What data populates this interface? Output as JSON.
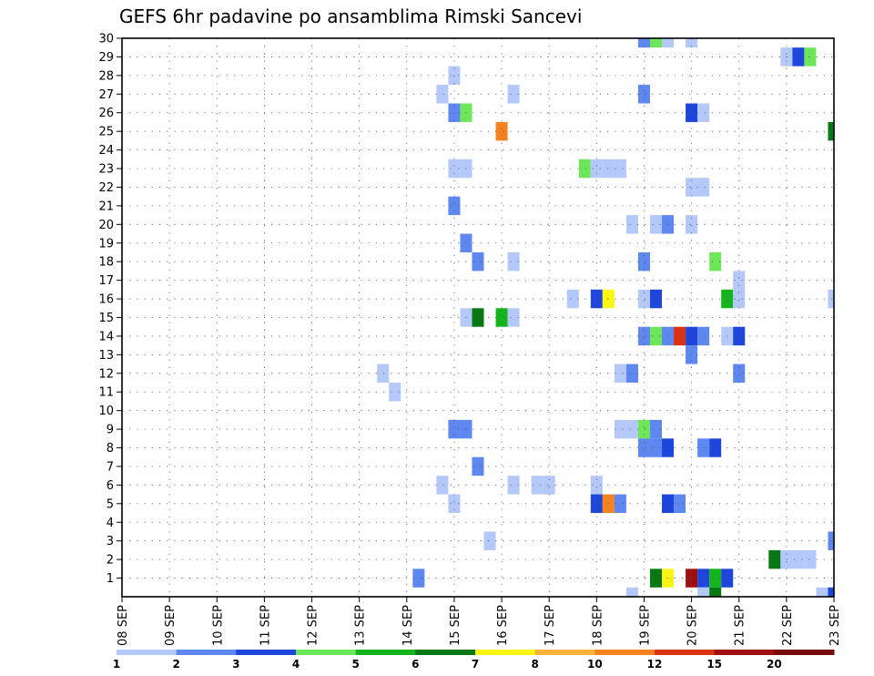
{
  "chart_data": {
    "type": "heatmap",
    "title": "GEFS 6hr padavine po ansamblima Rimski Sancevi",
    "x_ticks": [
      "08 SEP",
      "09 SEP",
      "10 SEP",
      "11 SEP",
      "12 SEP",
      "13 SEP",
      "14 SEP",
      "15 SEP",
      "16 SEP",
      "17 SEP",
      "18 SEP",
      "19 SEP",
      "20 SEP",
      "21 SEP",
      "22 SEP",
      "23 SEP"
    ],
    "x_range": [
      "08 SEP 00Z",
      "23 SEP 00Z"
    ],
    "y_ticks": [
      "1",
      "2",
      "3",
      "4",
      "5",
      "6",
      "7",
      "8",
      "9",
      "10",
      "11",
      "12",
      "13",
      "14",
      "15",
      "16",
      "17",
      "18",
      "19",
      "20",
      "21",
      "22",
      "23",
      "24",
      "25",
      "26",
      "27",
      "28",
      "29",
      "30"
    ],
    "y_range": [
      0,
      30
    ],
    "grid": true,
    "legend_levels": [
      "1",
      "2",
      "3",
      "4",
      "5",
      "6",
      "7",
      "8",
      "10",
      "12",
      "15",
      "20"
    ],
    "legend_colors": [
      "#b4c8fa",
      "#5f87f0",
      "#1e46dc",
      "#6ee65a",
      "#14b41e",
      "#087814",
      "#faf514",
      "#fab43c",
      "#f5821e",
      "#dc3214",
      "#a00f0f",
      "#780a0a"
    ],
    "cells": [
      {
        "member": 30,
        "x": "19 SEP 00Z",
        "level": 2
      },
      {
        "member": 30,
        "x": "19 SEP 06Z",
        "level": 4
      },
      {
        "member": 30,
        "x": "19 SEP 12Z",
        "level": 1
      },
      {
        "member": 30,
        "x": "20 SEP 00Z",
        "level": 1
      },
      {
        "member": 29,
        "x": "22 SEP 00Z",
        "level": 1
      },
      {
        "member": 29,
        "x": "22 SEP 06Z",
        "level": 3
      },
      {
        "member": 29,
        "x": "22 SEP 12Z",
        "level": 4
      },
      {
        "member": 28,
        "x": "15 SEP 00Z",
        "level": 1
      },
      {
        "member": 27,
        "x": "14 SEP 18Z",
        "level": 1
      },
      {
        "member": 27,
        "x": "16 SEP 06Z",
        "level": 1
      },
      {
        "member": 27,
        "x": "19 SEP 00Z",
        "level": 2
      },
      {
        "member": 26,
        "x": "15 SEP 00Z",
        "level": 2
      },
      {
        "member": 26,
        "x": "15 SEP 06Z",
        "level": 4
      },
      {
        "member": 26,
        "x": "20 SEP 00Z",
        "level": 3
      },
      {
        "member": 26,
        "x": "20 SEP 06Z",
        "level": 1
      },
      {
        "member": 25,
        "x": "16 SEP 00Z",
        "level": 10
      },
      {
        "member": 25,
        "x": "23 SEP 00Z",
        "level": 6
      },
      {
        "member": 23,
        "x": "15 SEP 00Z",
        "level": 1
      },
      {
        "member": 23,
        "x": "15 SEP 06Z",
        "level": 1
      },
      {
        "member": 23,
        "x": "17 SEP 18Z",
        "level": 4
      },
      {
        "member": 23,
        "x": "18 SEP 00Z",
        "level": 1
      },
      {
        "member": 23,
        "x": "18 SEP 06Z",
        "level": 1
      },
      {
        "member": 23,
        "x": "18 SEP 12Z",
        "level": 1
      },
      {
        "member": 22,
        "x": "20 SEP 00Z",
        "level": 1
      },
      {
        "member": 22,
        "x": "20 SEP 06Z",
        "level": 1
      },
      {
        "member": 21,
        "x": "15 SEP 00Z",
        "level": 2
      },
      {
        "member": 20,
        "x": "18 SEP 18Z",
        "level": 1
      },
      {
        "member": 20,
        "x": "19 SEP 06Z",
        "level": 1
      },
      {
        "member": 20,
        "x": "19 SEP 12Z",
        "level": 2
      },
      {
        "member": 20,
        "x": "20 SEP 00Z",
        "level": 1
      },
      {
        "member": 19,
        "x": "15 SEP 06Z",
        "level": 2
      },
      {
        "member": 18,
        "x": "15 SEP 12Z",
        "level": 2
      },
      {
        "member": 18,
        "x": "16 SEP 06Z",
        "level": 1
      },
      {
        "member": 18,
        "x": "19 SEP 00Z",
        "level": 2
      },
      {
        "member": 18,
        "x": "20 SEP 12Z",
        "level": 4
      },
      {
        "member": 17,
        "x": "21 SEP 00Z",
        "level": 1
      },
      {
        "member": 16,
        "x": "17 SEP 12Z",
        "level": 1
      },
      {
        "member": 16,
        "x": "18 SEP 00Z",
        "level": 3
      },
      {
        "member": 16,
        "x": "18 SEP 06Z",
        "level": 7
      },
      {
        "member": 16,
        "x": "19 SEP 00Z",
        "level": 1
      },
      {
        "member": 16,
        "x": "19 SEP 06Z",
        "level": 3
      },
      {
        "member": 16,
        "x": "20 SEP 18Z",
        "level": 5
      },
      {
        "member": 16,
        "x": "21 SEP 00Z",
        "level": 1
      },
      {
        "member": 16,
        "x": "23 SEP 00Z",
        "level": 1
      },
      {
        "member": 15,
        "x": "15 SEP 06Z",
        "level": 1
      },
      {
        "member": 15,
        "x": "15 SEP 12Z",
        "level": 6
      },
      {
        "member": 15,
        "x": "16 SEP 00Z",
        "level": 5
      },
      {
        "member": 15,
        "x": "16 SEP 06Z",
        "level": 1
      },
      {
        "member": 14,
        "x": "19 SEP 00Z",
        "level": 2
      },
      {
        "member": 14,
        "x": "19 SEP 06Z",
        "level": 4
      },
      {
        "member": 14,
        "x": "19 SEP 12Z",
        "level": 2
      },
      {
        "member": 14,
        "x": "19 SEP 18Z",
        "level": 12
      },
      {
        "member": 14,
        "x": "20 SEP 00Z",
        "level": 3
      },
      {
        "member": 14,
        "x": "20 SEP 06Z",
        "level": 2
      },
      {
        "member": 14,
        "x": "20 SEP 18Z",
        "level": 1
      },
      {
        "member": 14,
        "x": "21 SEP 00Z",
        "level": 3
      },
      {
        "member": 13,
        "x": "20 SEP 00Z",
        "level": 2
      },
      {
        "member": 12,
        "x": "13 SEP 12Z",
        "level": 1
      },
      {
        "member": 12,
        "x": "18 SEP 12Z",
        "level": 1
      },
      {
        "member": 12,
        "x": "18 SEP 18Z",
        "level": 2
      },
      {
        "member": 12,
        "x": "21 SEP 00Z",
        "level": 2
      },
      {
        "member": 11,
        "x": "13 SEP 18Z",
        "level": 1
      },
      {
        "member": 9,
        "x": "15 SEP 00Z",
        "level": 2
      },
      {
        "member": 9,
        "x": "15 SEP 06Z",
        "level": 2
      },
      {
        "member": 9,
        "x": "18 SEP 12Z",
        "level": 1
      },
      {
        "member": 9,
        "x": "18 SEP 18Z",
        "level": 1
      },
      {
        "member": 9,
        "x": "19 SEP 00Z",
        "level": 4
      },
      {
        "member": 9,
        "x": "19 SEP 06Z",
        "level": 2
      },
      {
        "member": 8,
        "x": "19 SEP 00Z",
        "level": 2
      },
      {
        "member": 8,
        "x": "19 SEP 06Z",
        "level": 2
      },
      {
        "member": 8,
        "x": "19 SEP 12Z",
        "level": 3
      },
      {
        "member": 8,
        "x": "20 SEP 06Z",
        "level": 2
      },
      {
        "member": 8,
        "x": "20 SEP 12Z",
        "level": 3
      },
      {
        "member": 7,
        "x": "15 SEP 12Z",
        "level": 2
      },
      {
        "member": 6,
        "x": "14 SEP 18Z",
        "level": 1
      },
      {
        "member": 6,
        "x": "16 SEP 06Z",
        "level": 1
      },
      {
        "member": 6,
        "x": "16 SEP 18Z",
        "level": 1
      },
      {
        "member": 6,
        "x": "17 SEP 00Z",
        "level": 1
      },
      {
        "member": 6,
        "x": "18 SEP 00Z",
        "level": 1
      },
      {
        "member": 5,
        "x": "15 SEP 00Z",
        "level": 1
      },
      {
        "member": 5,
        "x": "18 SEP 00Z",
        "level": 3
      },
      {
        "member": 5,
        "x": "18 SEP 06Z",
        "level": 10
      },
      {
        "member": 5,
        "x": "18 SEP 12Z",
        "level": 2
      },
      {
        "member": 5,
        "x": "19 SEP 12Z",
        "level": 3
      },
      {
        "member": 5,
        "x": "19 SEP 18Z",
        "level": 2
      },
      {
        "member": 3,
        "x": "15 SEP 18Z",
        "level": 1
      },
      {
        "member": 3,
        "x": "23 SEP 00Z",
        "level": 2
      },
      {
        "member": 2,
        "x": "21 SEP 18Z",
        "level": 6
      },
      {
        "member": 2,
        "x": "22 SEP 00Z",
        "level": 1
      },
      {
        "member": 2,
        "x": "22 SEP 06Z",
        "level": 1
      },
      {
        "member": 2,
        "x": "22 SEP 12Z",
        "level": 1
      },
      {
        "member": 1,
        "x": "14 SEP 06Z",
        "level": 2
      },
      {
        "member": 1,
        "x": "19 SEP 06Z",
        "level": 6
      },
      {
        "member": 1,
        "x": "19 SEP 12Z",
        "level": 7
      },
      {
        "member": 1,
        "x": "20 SEP 00Z",
        "level": 15
      },
      {
        "member": 1,
        "x": "20 SEP 06Z",
        "level": 3
      },
      {
        "member": 1,
        "x": "20 SEP 12Z",
        "level": 5
      },
      {
        "member": 1,
        "x": "20 SEP 18Z",
        "level": 3
      },
      {
        "member": 0,
        "x": "18 SEP 18Z",
        "level": 1
      },
      {
        "member": 0,
        "x": "20 SEP 06Z",
        "level": 1
      },
      {
        "member": 0,
        "x": "20 SEP 12Z",
        "level": 6
      },
      {
        "member": 0,
        "x": "22 SEP 18Z",
        "level": 1
      },
      {
        "member": 0,
        "x": "23 SEP 00Z",
        "level": 3
      }
    ]
  }
}
